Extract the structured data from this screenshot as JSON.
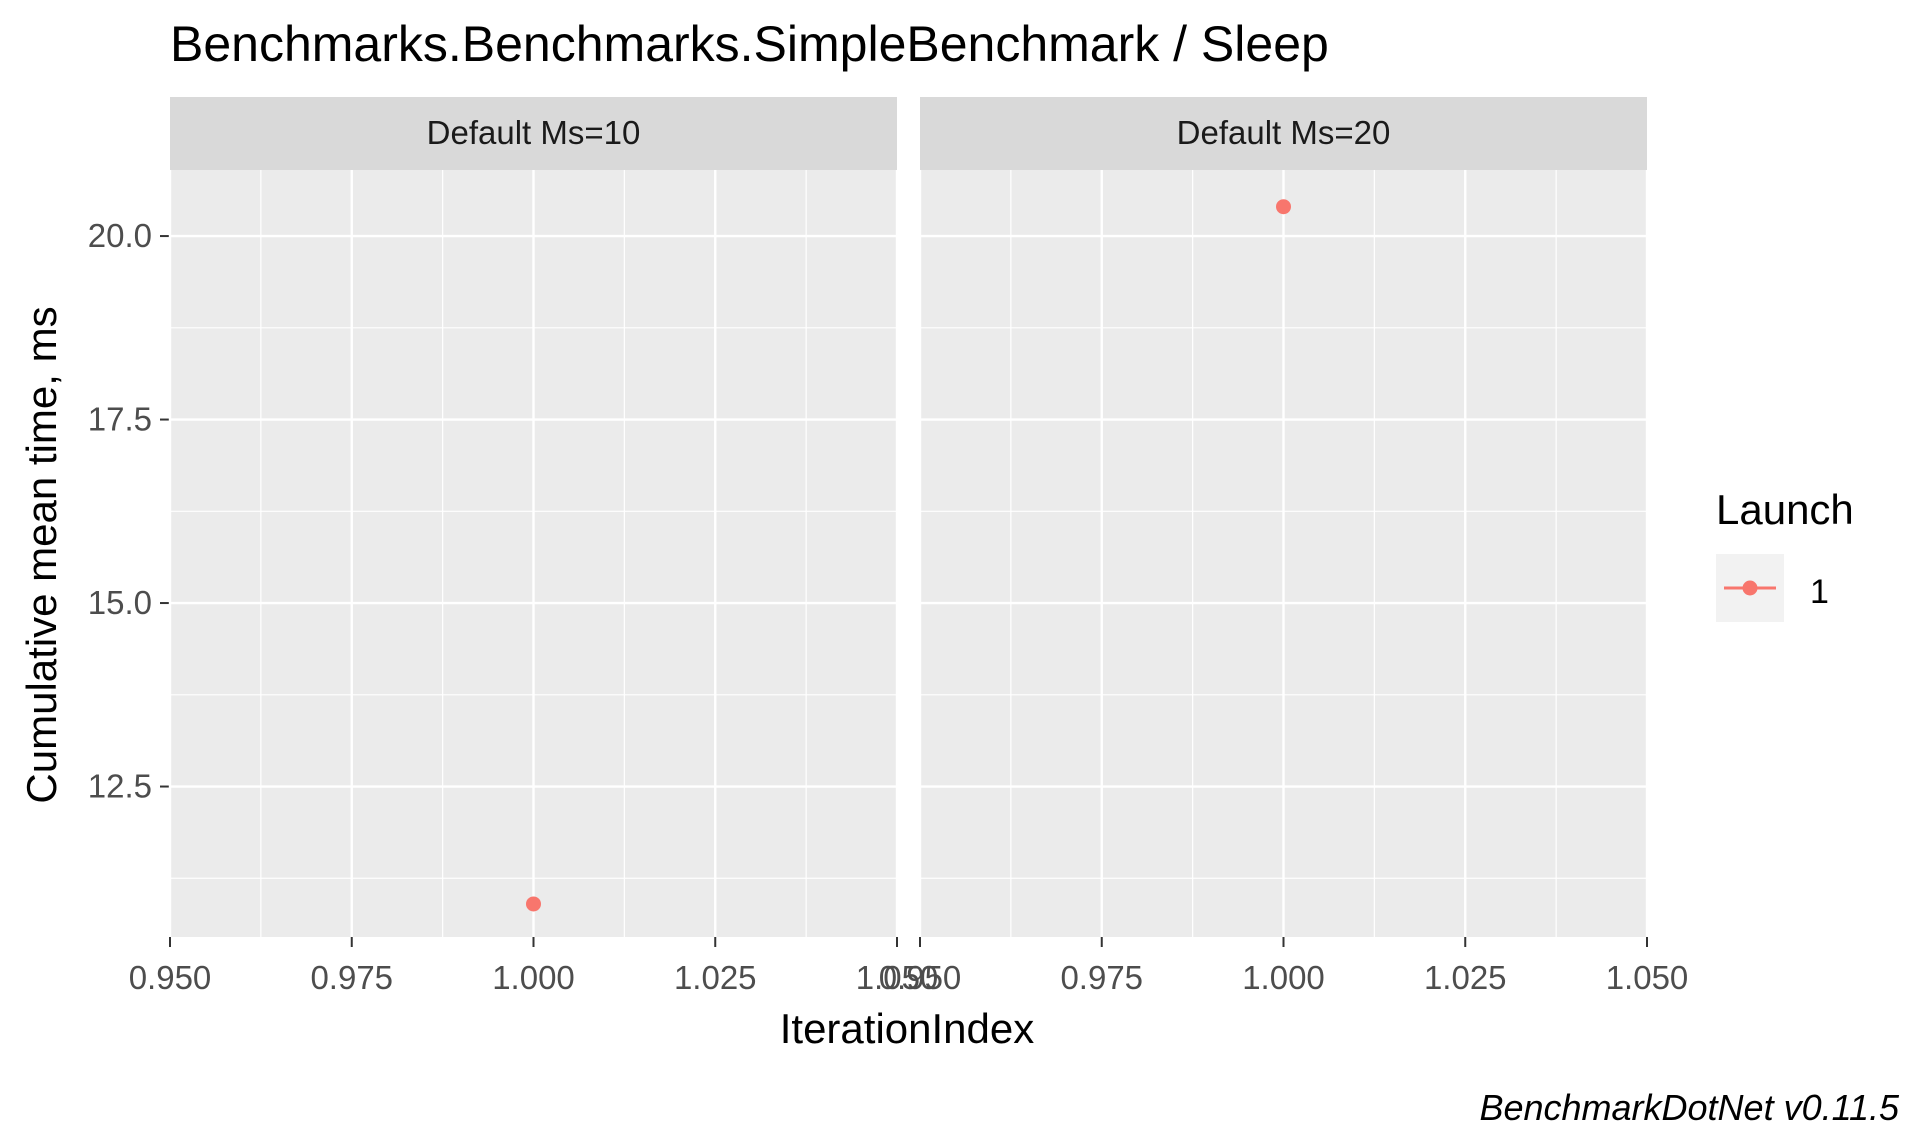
{
  "chart_data": {
    "type": "scatter",
    "title": "Benchmarks.Benchmarks.SimpleBenchmark / Sleep",
    "xlabel": "IterationIndex",
    "ylabel": "Cumulative mean time, ms",
    "caption": "BenchmarkDotNet v0.11.5",
    "xlim": [
      0.95,
      1.05
    ],
    "ylim": [
      10.45,
      20.9
    ],
    "x_ticks": [
      0.95,
      0.975,
      1.0,
      1.025,
      1.05
    ],
    "x_tick_labels": [
      "0.950",
      "0.975",
      "1.000",
      "1.025",
      "1.050"
    ],
    "y_ticks": [
      12.5,
      15.0,
      17.5,
      20.0
    ],
    "y_tick_labels": [
      "12.5",
      "15.0",
      "17.5",
      "20.0"
    ],
    "grid": true,
    "legend": {
      "title": "Launch",
      "position": "right",
      "entries": [
        {
          "label": "1",
          "color": "#F8766D"
        }
      ]
    },
    "panels": [
      {
        "label": "Default Ms=10",
        "series": [
          {
            "name": "1",
            "color": "#F8766D",
            "points": [
              {
                "x": 1.0,
                "y": 10.9
              }
            ]
          }
        ]
      },
      {
        "label": "Default Ms=20",
        "series": [
          {
            "name": "1",
            "color": "#F8766D",
            "points": [
              {
                "x": 1.0,
                "y": 20.4
              }
            ]
          }
        ]
      }
    ]
  }
}
